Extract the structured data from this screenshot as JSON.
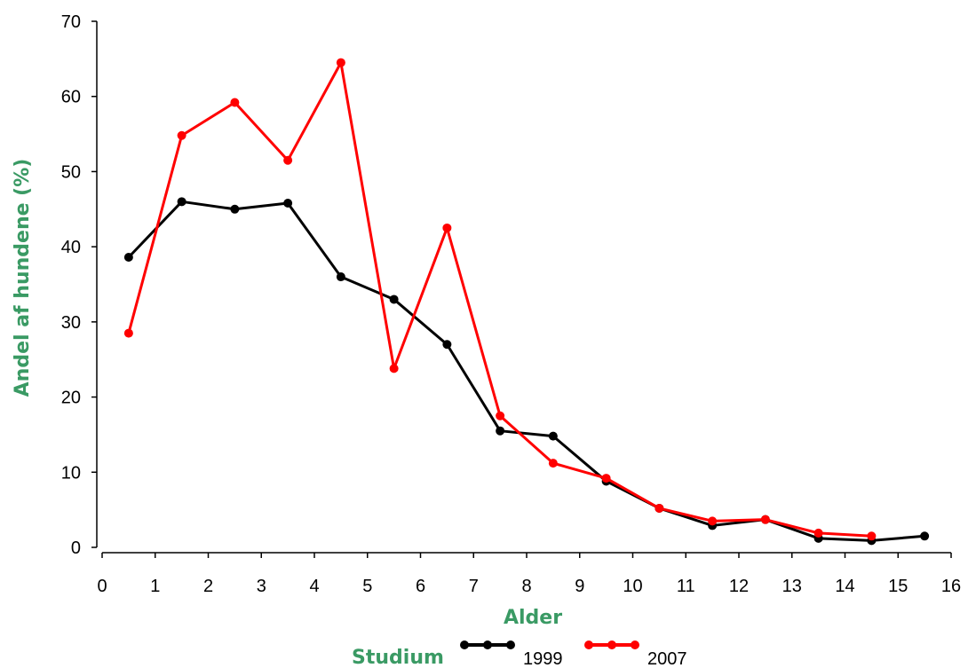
{
  "chart_data": {
    "type": "line",
    "xlabel": "Alder",
    "ylabel": "Andel af hundene (%)",
    "xlim": [
      0,
      16
    ],
    "ylim": [
      0,
      70
    ],
    "xticks": [
      "0",
      "1",
      "2",
      "3",
      "4",
      "5",
      "6",
      "7",
      "8",
      "9",
      "10",
      "11",
      "12",
      "13",
      "14",
      "15",
      "16"
    ],
    "yticks": [
      "0",
      "10",
      "20",
      "30",
      "40",
      "50",
      "60",
      "70"
    ],
    "grid": false,
    "legend": {
      "title": "Studium",
      "placement": "bottom"
    },
    "series": [
      {
        "name": "1999",
        "color": "#000000",
        "x": [
          0.5,
          1.5,
          2.5,
          3.5,
          4.5,
          5.5,
          6.5,
          7.5,
          8.5,
          9.5,
          10.5,
          11.5,
          12.5,
          13.5,
          14.5,
          15.5
        ],
        "values": [
          38.6,
          46.0,
          45.0,
          45.8,
          36.0,
          33.0,
          27.0,
          15.5,
          14.8,
          8.8,
          5.2,
          2.9,
          3.7,
          1.2,
          0.9,
          1.5
        ]
      },
      {
        "name": "2007",
        "color": "#ff0000",
        "x": [
          0.5,
          1.5,
          2.5,
          3.5,
          4.5,
          5.5,
          6.5,
          7.5,
          8.5,
          9.5,
          10.5,
          11.5,
          12.5,
          13.5,
          14.5
        ],
        "values": [
          28.5,
          54.8,
          59.2,
          51.5,
          64.5,
          23.8,
          42.5,
          17.5,
          11.2,
          9.2,
          5.2,
          3.5,
          3.7,
          1.9,
          1.5
        ]
      }
    ]
  }
}
